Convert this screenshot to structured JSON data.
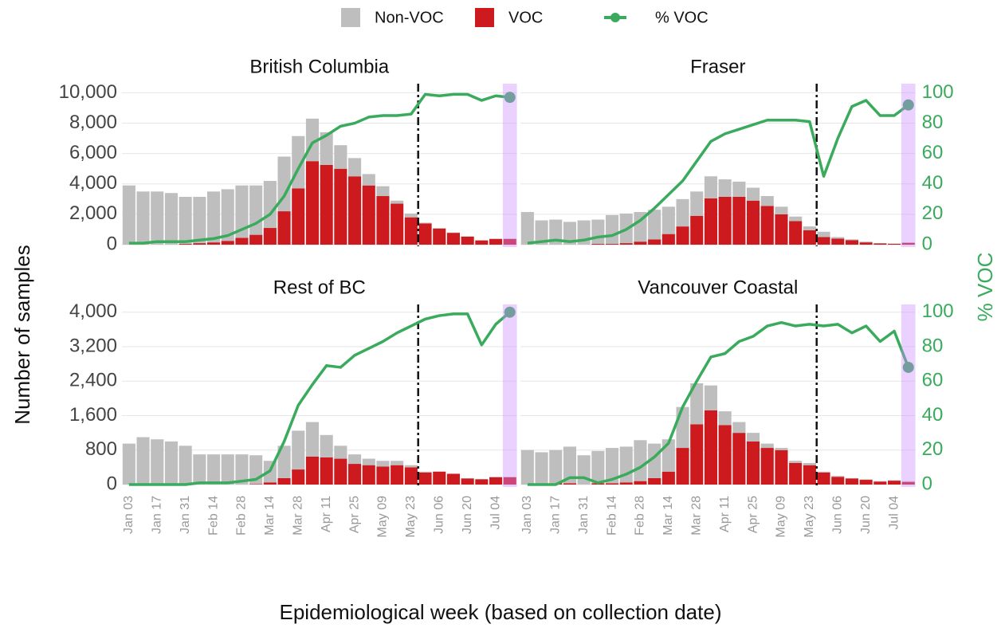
{
  "xlabel": "Epidemiological week (based on collection date)",
  "ylabel": "Number of samples",
  "y2label": "% VOC",
  "chart_data": [
    {
      "type": "bar",
      "title": "British Columbia",
      "categories": [
        "Jan 03",
        null,
        "Jan 17",
        null,
        "Jan 31",
        null,
        "Feb 14",
        null,
        "Feb 28",
        null,
        "Mar 14",
        null,
        "Mar 28",
        null,
        "Apr 11",
        null,
        "Apr 25",
        null,
        "May 09",
        null,
        "May 23",
        null,
        "Jun 06",
        null,
        "Jun 20",
        null,
        "Jul 04",
        null
      ],
      "reference_line": "May 23",
      "series": [
        {
          "name": "Non-VOC",
          "type": "bar",
          "color": "#bebebe",
          "values": [
            3900,
            3500,
            3500,
            3400,
            3100,
            3050,
            3350,
            3400,
            3450,
            3250,
            3100,
            3600,
            3450,
            2800,
            2150,
            1550,
            1200,
            750,
            650,
            200,
            250,
            50,
            50,
            20,
            20,
            20,
            20,
            20
          ]
        },
        {
          "name": "VOC",
          "type": "bar",
          "color": "#cc1a1f",
          "values": [
            0,
            0,
            0,
            0,
            50,
            100,
            150,
            250,
            450,
            650,
            1100,
            2200,
            3700,
            5500,
            5250,
            5000,
            4500,
            3900,
            3200,
            2700,
            1800,
            1400,
            1050,
            780,
            530,
            280,
            380,
            380
          ]
        },
        {
          "name": "% VOC",
          "type": "line",
          "axis": "y2",
          "color": "#3aaa5c",
          "values": [
            1,
            1,
            2,
            2,
            2,
            3,
            4,
            6,
            10,
            14,
            20,
            32,
            50,
            67,
            72,
            78,
            80,
            84,
            85,
            85,
            86,
            99,
            98,
            99,
            99,
            95,
            98,
            97
          ]
        }
      ],
      "ylim": [
        0,
        10600
      ],
      "yticks": [
        0,
        {
          "value": 2000,
          "label": "2,000"
        },
        {
          "value": 4000,
          "label": "4,000"
        },
        {
          "value": 6000,
          "label": "6,000"
        },
        {
          "value": 8000,
          "label": "8,000"
        },
        {
          "value": 10000,
          "label": "10,000"
        }
      ],
      "y2lim": [
        0,
        106
      ],
      "grid": true
    },
    {
      "type": "bar",
      "title": "Fraser",
      "categories": [
        "Jan 03",
        null,
        "Jan 17",
        null,
        "Jan 31",
        null,
        "Feb 14",
        null,
        "Feb 28",
        null,
        "Mar 14",
        null,
        "Mar 28",
        null,
        "Apr 11",
        null,
        "Apr 25",
        null,
        "May 09",
        null,
        "May 23",
        null,
        "Jun 06",
        null,
        "Jun 20",
        null,
        "Jul 04",
        null
      ],
      "reference_line": "May 23",
      "series": [
        {
          "name": "Non-VOC",
          "type": "bar",
          "color": "#bebebe",
          "values": [
            2150,
            1600,
            1650,
            1500,
            1600,
            1600,
            1900,
            1950,
            1950,
            1950,
            1800,
            1800,
            1600,
            1450,
            1150,
            1000,
            850,
            650,
            500,
            300,
            250,
            350,
            100,
            50,
            50,
            20,
            20,
            30
          ]
        },
        {
          "name": "VOC",
          "type": "bar",
          "color": "#cc1a1f",
          "values": [
            0,
            0,
            0,
            0,
            0,
            50,
            50,
            100,
            200,
            350,
            700,
            1200,
            1900,
            3050,
            3150,
            3150,
            2900,
            2550,
            2000,
            1550,
            950,
            500,
            400,
            300,
            150,
            80,
            60,
            120
          ]
        },
        {
          "name": "% VOC",
          "type": "line",
          "axis": "y2",
          "color": "#3aaa5c",
          "values": [
            1,
            2,
            3,
            2,
            3,
            5,
            6,
            10,
            16,
            24,
            33,
            42,
            55,
            68,
            73,
            76,
            79,
            82,
            82,
            82,
            81,
            45,
            70,
            91,
            95,
            85,
            85,
            92
          ]
        }
      ],
      "ylim": [
        0,
        10600
      ],
      "yticks": [
        0,
        {
          "value": 2000,
          "label": "2,000"
        },
        {
          "value": 4000,
          "label": "4,000"
        },
        {
          "value": 6000,
          "label": "6,000"
        },
        {
          "value": 8000,
          "label": "8,000"
        },
        {
          "value": 10000,
          "label": "10,000"
        }
      ],
      "y2lim": [
        0,
        106
      ],
      "y2ticks": [
        0,
        20,
        40,
        60,
        80,
        100
      ],
      "grid": true
    },
    {
      "type": "bar",
      "title": "Rest of BC",
      "categories": [
        "Jan 03",
        null,
        "Jan 17",
        null,
        "Jan 31",
        null,
        "Feb 14",
        null,
        "Feb 28",
        null,
        "Mar 14",
        null,
        "Mar 28",
        null,
        "Apr 11",
        null,
        "Apr 25",
        null,
        "May 09",
        null,
        "May 23",
        null,
        "Jun 06",
        null,
        "Jun 20",
        null,
        "Jul 04",
        null
      ],
      "reference_line": "May 23",
      "series": [
        {
          "name": "Non-VOC",
          "type": "bar",
          "color": "#bebebe",
          "values": [
            950,
            1100,
            1050,
            1000,
            900,
            700,
            700,
            700,
            700,
            670,
            500,
            750,
            900,
            800,
            520,
            300,
            220,
            150,
            130,
            100,
            50,
            20,
            0,
            0,
            10,
            10,
            10,
            10
          ]
        },
        {
          "name": "VOC",
          "type": "bar",
          "color": "#cc1a1f",
          "values": [
            0,
            0,
            0,
            0,
            0,
            0,
            0,
            0,
            0,
            10,
            50,
            150,
            350,
            650,
            630,
            600,
            480,
            450,
            420,
            450,
            400,
            280,
            300,
            250,
            140,
            120,
            170,
            170
          ]
        },
        {
          "name": "% VOC",
          "type": "line",
          "axis": "y2",
          "color": "#3aaa5c",
          "values": [
            0,
            0,
            0,
            0,
            0,
            1,
            1,
            1,
            2,
            3,
            8,
            25,
            46,
            58,
            69,
            68,
            75,
            79,
            83,
            88,
            92,
            96,
            98,
            99,
            99,
            81,
            93,
            100
          ]
        }
      ],
      "ylim": [
        0,
        4180
      ],
      "yticks": [
        0,
        800,
        {
          "value": 1600,
          "label": "1,600"
        },
        {
          "value": 2400,
          "label": "2,400"
        },
        {
          "value": 3200,
          "label": "3,200"
        },
        {
          "value": 4000,
          "label": "4,000"
        }
      ],
      "y2lim": [
        0,
        104.5
      ],
      "grid": true
    },
    {
      "type": "bar",
      "title": "Vancouver Coastal",
      "categories": [
        "Jan 03",
        null,
        "Jan 17",
        null,
        "Jan 31",
        null,
        "Feb 14",
        null,
        "Feb 28",
        null,
        "Mar 14",
        null,
        "Mar 28",
        null,
        "Apr 11",
        null,
        "Apr 25",
        null,
        "May 09",
        null,
        "May 23",
        null,
        "Jun 06",
        null,
        "Jun 20",
        null,
        "Jul 04",
        null
      ],
      "reference_line": "May 23",
      "series": [
        {
          "name": "Non-VOC",
          "type": "bar",
          "color": "#bebebe",
          "values": [
            800,
            750,
            770,
            850,
            680,
            750,
            820,
            830,
            950,
            800,
            750,
            950,
            950,
            580,
            320,
            250,
            200,
            100,
            50,
            50,
            50,
            20,
            20,
            10,
            10,
            10,
            10,
            20
          ]
        },
        {
          "name": "VOC",
          "type": "bar",
          "color": "#cc1a1f",
          "values": [
            0,
            0,
            30,
            30,
            0,
            30,
            30,
            50,
            80,
            150,
            300,
            850,
            1400,
            1720,
            1380,
            1200,
            1000,
            850,
            800,
            500,
            450,
            280,
            180,
            140,
            110,
            70,
            90,
            60
          ]
        },
        {
          "name": "% VOC",
          "type": "line",
          "axis": "y2",
          "color": "#3aaa5c",
          "values": [
            0,
            0,
            0,
            4,
            4,
            1,
            3,
            6,
            10,
            16,
            24,
            45,
            60,
            74,
            76,
            83,
            86,
            92,
            94,
            92,
            93,
            92,
            93,
            88,
            92,
            83,
            89,
            68
          ]
        }
      ],
      "ylim": [
        0,
        4180
      ],
      "yticks": [
        0,
        800,
        {
          "value": 1600,
          "label": "1,600"
        },
        {
          "value": 2400,
          "label": "2,400"
        },
        {
          "value": 3200,
          "label": "3,200"
        },
        {
          "value": 4000,
          "label": "4,000"
        }
      ],
      "y2lim": [
        0,
        104.5
      ],
      "y2ticks": [
        0,
        20,
        40,
        60,
        80,
        100
      ],
      "grid": true
    }
  ]
}
